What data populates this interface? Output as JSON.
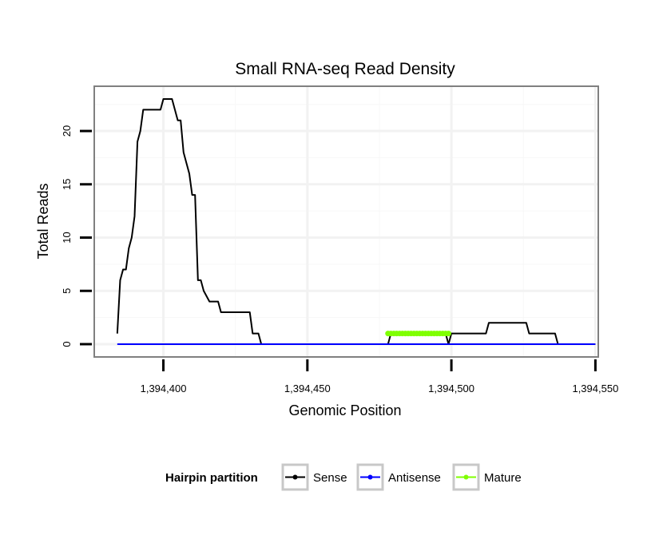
{
  "chart_data": {
    "type": "line",
    "title": "Small RNA-seq Read Density",
    "xlabel": "Genomic Position",
    "ylabel": "Total Reads",
    "xlim": [
      1394376,
      1394551
    ],
    "ylim": [
      -1.2,
      24.2
    ],
    "x_ticks": [
      1394400,
      1394450,
      1394500,
      1394550
    ],
    "x_tick_labels": [
      "1,394,400",
      "1,394,450",
      "1,394,500",
      "1,394,550"
    ],
    "y_ticks": [
      0,
      5,
      10,
      15,
      20
    ],
    "y_tick_labels": [
      "0",
      "5",
      "10",
      "15",
      "20"
    ],
    "grid": true,
    "legend": {
      "title": "Hairpin partition",
      "position": "bottom",
      "entries": [
        "Sense",
        "Antisense",
        "Mature"
      ]
    },
    "series": [
      {
        "name": "Sense",
        "color": "#000000",
        "x": [
          1394384,
          1394385,
          1394386,
          1394387,
          1394388,
          1394389,
          1394390,
          1394391,
          1394392,
          1394393,
          1394394,
          1394395,
          1394399,
          1394400,
          1394403,
          1394404,
          1394405,
          1394406,
          1394407,
          1394408,
          1394409,
          1394410,
          1394411,
          1394412,
          1394413,
          1394414,
          1394416,
          1394417,
          1394419,
          1394420,
          1394423,
          1394427,
          1394430,
          1394431,
          1394433,
          1394434,
          1394478,
          1394479,
          1394497,
          1394498,
          1394499,
          1394500,
          1394512,
          1394513,
          1394526,
          1394527,
          1394536,
          1394537,
          1394550
        ],
        "y": [
          1,
          6,
          7,
          7,
          9,
          10,
          12,
          19,
          20,
          22,
          22,
          22,
          22,
          23,
          23,
          22,
          21,
          21,
          18,
          17,
          16,
          14,
          14,
          6,
          6,
          5,
          4,
          4,
          4,
          3,
          3,
          3,
          3,
          1,
          1,
          0,
          0,
          1,
          1,
          1,
          0,
          1,
          1,
          2,
          2,
          1,
          1,
          0,
          0
        ]
      },
      {
        "name": "Antisense",
        "color": "#0000ff",
        "x": [
          1394384,
          1394550
        ],
        "y": [
          0,
          0
        ]
      },
      {
        "name": "Mature",
        "color": "#7fff00",
        "x": [
          1394478,
          1394499
        ],
        "y": [
          1,
          1
        ]
      }
    ]
  }
}
